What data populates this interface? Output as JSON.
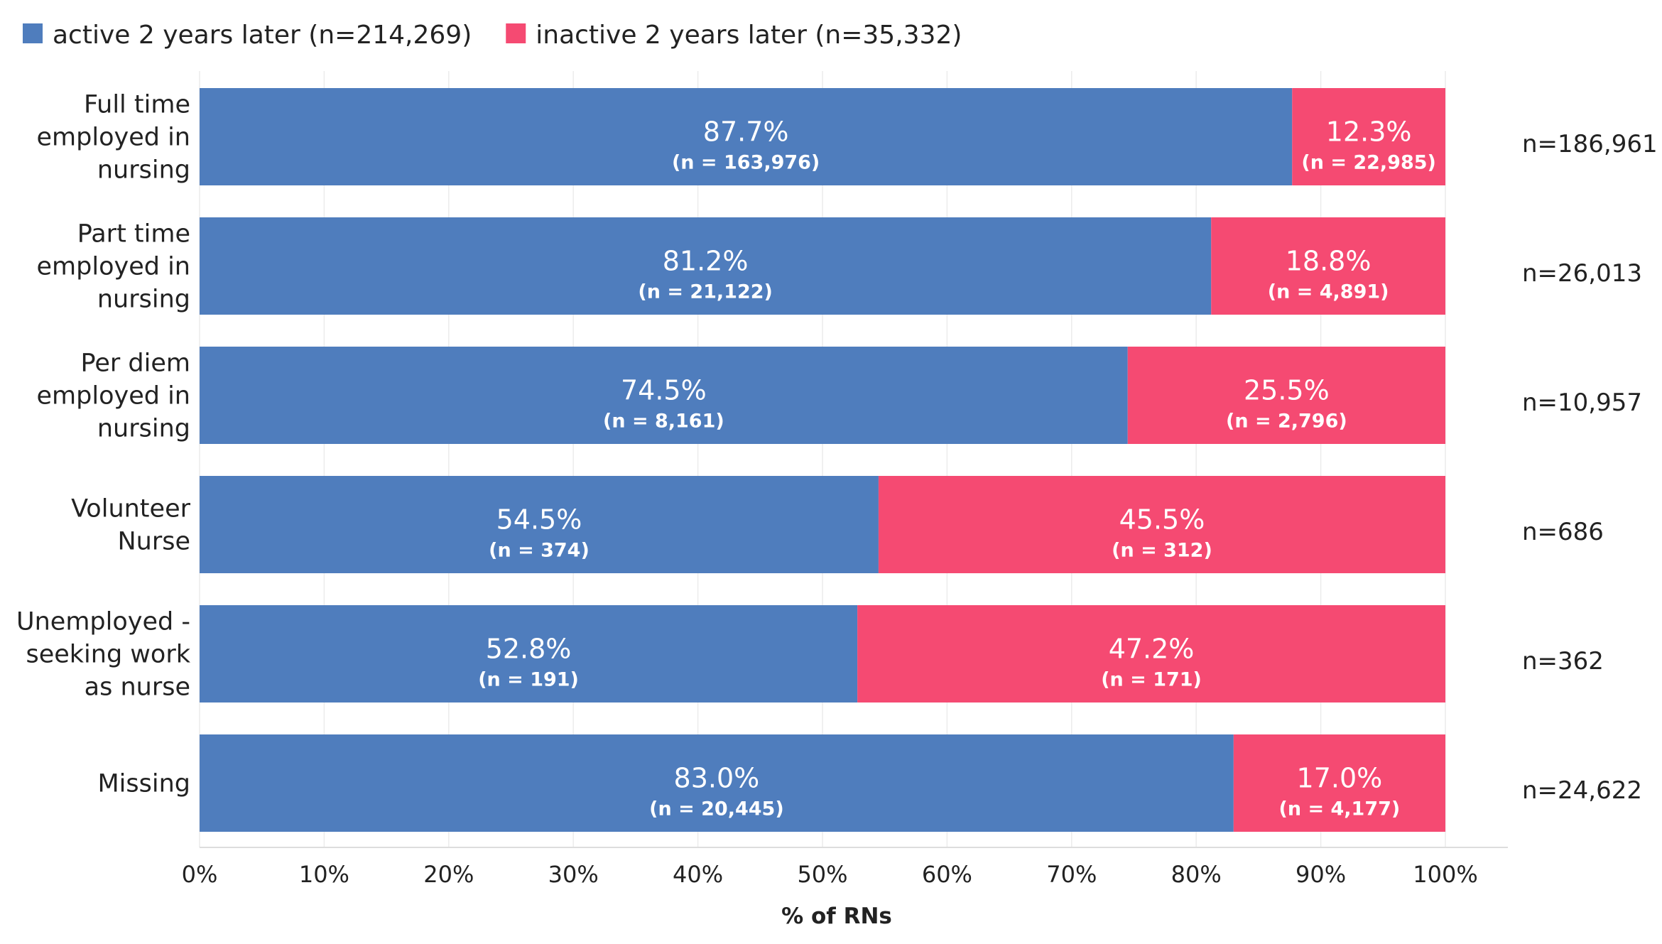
{
  "chart_data": {
    "type": "bar",
    "orientation": "horizontal",
    "stacked": true,
    "xlabel": "% of RNs",
    "xlim": [
      0,
      100
    ],
    "x_ticks": [
      "0%",
      "10%",
      "20%",
      "30%",
      "40%",
      "50%",
      "60%",
      "70%",
      "80%",
      "90%",
      "100%"
    ],
    "grid": true,
    "legend_position": "top-left",
    "colors": {
      "active": "#4f7dbd",
      "inactive": "#f54a72"
    },
    "legend": [
      {
        "key": "active",
        "label": "active 2 years later (n=214,269)"
      },
      {
        "key": "inactive",
        "label": "inactive 2 years later (n=35,332)"
      }
    ],
    "categories": [
      {
        "label_lines": [
          "Full time",
          "employed in",
          "nursing"
        ],
        "total": "n=186,961",
        "active": {
          "value": 87.7,
          "pct": "87.7%",
          "n": "(n = 163,976)"
        },
        "inactive": {
          "value": 12.3,
          "pct": "12.3%",
          "n": "(n = 22,985)"
        }
      },
      {
        "label_lines": [
          "Part time",
          "employed in",
          "nursing"
        ],
        "total": "n=26,013",
        "active": {
          "value": 81.2,
          "pct": "81.2%",
          "n": "(n = 21,122)"
        },
        "inactive": {
          "value": 18.8,
          "pct": "18.8%",
          "n": "(n = 4,891)"
        }
      },
      {
        "label_lines": [
          "Per diem",
          "employed in",
          "nursing"
        ],
        "total": "n=10,957",
        "active": {
          "value": 74.5,
          "pct": "74.5%",
          "n": "(n = 8,161)"
        },
        "inactive": {
          "value": 25.5,
          "pct": "25.5%",
          "n": "(n = 2,796)"
        }
      },
      {
        "label_lines": [
          "Volunteer",
          "Nurse"
        ],
        "total": "n=686",
        "active": {
          "value": 54.5,
          "pct": "54.5%",
          "n": "(n = 374)"
        },
        "inactive": {
          "value": 45.5,
          "pct": "45.5%",
          "n": "(n = 312)"
        }
      },
      {
        "label_lines": [
          "Unemployed -",
          "seeking work",
          "as nurse"
        ],
        "total": "n=362",
        "active": {
          "value": 52.8,
          "pct": "52.8%",
          "n": "(n = 191)"
        },
        "inactive": {
          "value": 47.2,
          "pct": "47.2%",
          "n": "(n = 171)"
        }
      },
      {
        "label_lines": [
          "Missing"
        ],
        "total": "n=24,622",
        "active": {
          "value": 83.0,
          "pct": "83.0%",
          "n": "(n = 20,445)"
        },
        "inactive": {
          "value": 17.0,
          "pct": "17.0%",
          "n": "(n = 4,177)"
        }
      }
    ]
  }
}
